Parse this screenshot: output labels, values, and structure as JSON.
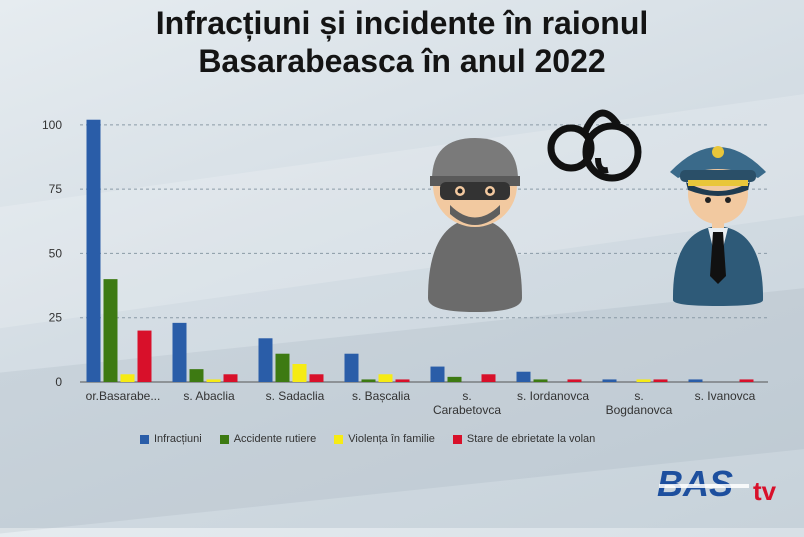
{
  "title_line1": "Infracțiuni și incidente în raionul",
  "title_line2": "Basarabeasca în anul 2022",
  "logo_text": "BAS",
  "logo_suffix": "tv",
  "chart_data": {
    "type": "bar",
    "categories": [
      [
        "or.Basarabe..."
      ],
      [
        "s. Abaclia"
      ],
      [
        "s. Sadaclia"
      ],
      [
        "s. Bașcalia"
      ],
      [
        "s.",
        "Carabetovca"
      ],
      [
        "s. Iordanovca"
      ],
      [
        "s.",
        "Bogdanovca"
      ],
      [
        "s. Ivanovca"
      ]
    ],
    "series": [
      {
        "name": "Infracțiuni",
        "color": "#2a5da8",
        "values": [
          102,
          23,
          17,
          11,
          6,
          4,
          1,
          1
        ]
      },
      {
        "name": "Accidente rutiere",
        "color": "#3d7a12",
        "values": [
          40,
          5,
          11,
          1,
          2,
          1,
          0,
          0
        ]
      },
      {
        "name": "Violența în familie",
        "color": "#f6eb14",
        "values": [
          3,
          1,
          7,
          3,
          0,
          0,
          1,
          0
        ]
      },
      {
        "name": "Stare de ebrietate la volan",
        "color": "#d8102a",
        "values": [
          20,
          3,
          3,
          1,
          3,
          1,
          1,
          1
        ]
      }
    ],
    "yticks": [
      0,
      25,
      50,
      75,
      100
    ],
    "ylim": [
      0,
      105
    ],
    "grid": true,
    "legend_position": "bottom"
  }
}
